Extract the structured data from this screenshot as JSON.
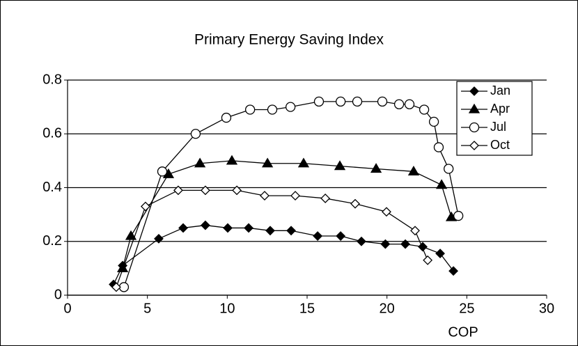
{
  "chart_data": {
    "type": "line",
    "title": "Primary Energy Saving Index",
    "x_label": "COP",
    "xlim": [
      0,
      30
    ],
    "xticks": [
      0,
      5,
      10,
      15,
      20,
      25,
      30
    ],
    "ylim": [
      0,
      0.8
    ],
    "yticks": [
      0,
      0.2,
      0.4,
      0.6,
      0.8
    ],
    "grid": true,
    "legend": "upper right",
    "series": [
      {
        "name": "Jan",
        "color": "#000000",
        "marker": "diamond",
        "filled": true,
        "x": [
          2.88,
          3.45,
          5.71,
          7.24,
          8.63,
          10.03,
          11.34,
          12.69,
          14.0,
          15.66,
          17.1,
          18.4,
          19.9,
          21.15,
          22.24,
          23.33,
          24.16
        ],
        "values": [
          0.04,
          0.11,
          0.21,
          0.25,
          0.26,
          0.25,
          0.25,
          0.24,
          0.24,
          0.22,
          0.22,
          0.2,
          0.19,
          0.19,
          0.18,
          0.155,
          0.09
        ]
      },
      {
        "name": "Apr",
        "color": "#000000",
        "marker": "triangle",
        "filled": true,
        "x": [
          3.45,
          3.97,
          6.32,
          8.29,
          10.29,
          12.52,
          14.78,
          17.05,
          19.32,
          21.67,
          23.42,
          24.03
        ],
        "values": [
          0.1,
          0.22,
          0.45,
          0.49,
          0.5,
          0.49,
          0.49,
          0.48,
          0.47,
          0.46,
          0.41,
          0.29
        ]
      },
      {
        "name": "Jul",
        "color": "#000000",
        "marker": "circle",
        "filled": false,
        "x": [
          3.53,
          5.93,
          8.02,
          9.94,
          11.43,
          12.82,
          13.96,
          15.74,
          17.1,
          18.14,
          19.71,
          20.76,
          21.41,
          22.33,
          22.94,
          23.24,
          23.86,
          24.47
        ],
        "values": [
          0.03,
          0.46,
          0.6,
          0.66,
          0.69,
          0.69,
          0.7,
          0.72,
          0.72,
          0.72,
          0.72,
          0.71,
          0.71,
          0.69,
          0.645,
          0.55,
          0.47,
          0.295
        ]
      },
      {
        "name": "Oct",
        "color": "#000000",
        "marker": "diamond",
        "filled": false,
        "x": [
          3.05,
          4.88,
          6.93,
          8.63,
          10.6,
          12.34,
          14.26,
          16.14,
          18.01,
          19.97,
          21.76,
          22.55
        ],
        "values": [
          0.03,
          0.33,
          0.39,
          0.39,
          0.39,
          0.37,
          0.37,
          0.36,
          0.34,
          0.31,
          0.24,
          0.13
        ]
      }
    ]
  }
}
